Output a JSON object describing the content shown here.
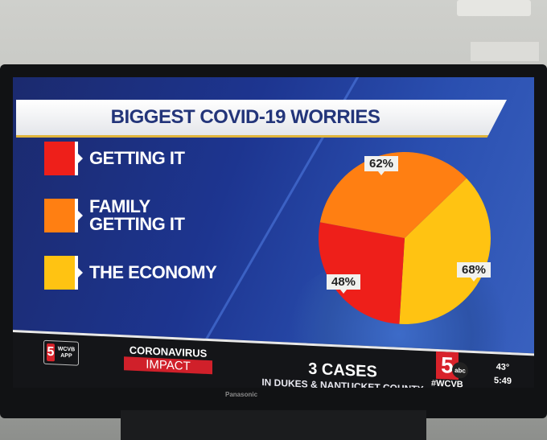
{
  "graphic": {
    "title": "BIGGEST COVID-19 WORRIES"
  },
  "chart_data": {
    "type": "pie",
    "title": "BIGGEST COVID-19 WORRIES",
    "series": [
      {
        "name": "GETTING IT",
        "value": 48,
        "label": "48%",
        "color": "#ee1f1a"
      },
      {
        "name": "FAMILY\nGETTING IT",
        "value": 62,
        "label": "62%",
        "color": "#ff7f12"
      },
      {
        "name": "THE ECONOMY",
        "value": 68,
        "label": "68%",
        "color": "#ffc312"
      }
    ],
    "legend": "left"
  },
  "ticker": {
    "app_logo": "5",
    "app_text": "WCVB APP",
    "segment_top": "CORONAVIRUS",
    "segment_bottom": "IMPACT",
    "headline": "3 CASES",
    "subline": "IN DUKES & NANTUCKET COUNTY",
    "station_logo": "5",
    "network": "abc",
    "hashtag": "#WCVB",
    "temperature": "43°",
    "time": "5:49"
  },
  "tv": {
    "brand": "Panasonic"
  }
}
